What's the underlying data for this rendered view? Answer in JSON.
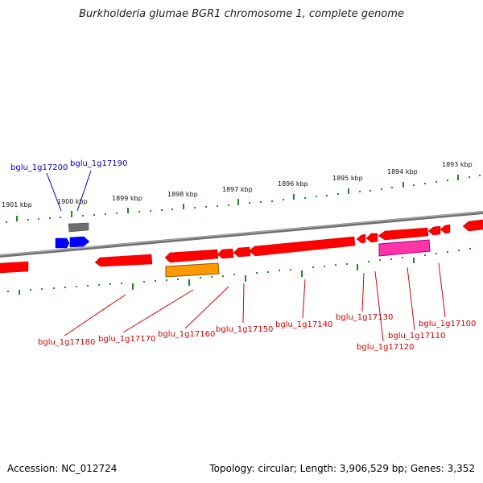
{
  "title": "Burkholderia glumae BGR1 chromosome 1, complete genome",
  "accession": "Accession: NC_012724",
  "summary": "Topology: circular; Length: 3,906,529 bp; Genes: 3,352",
  "kbp_labels": [
    "1901 kbp",
    "1900 kbp",
    "1899 kbp",
    "1898 kbp",
    "1897 kbp",
    "1896 kbp",
    "1895 kbp",
    "1894 kbp",
    "1893 kbp"
  ],
  "forward_genes": [
    "bglu_1g17200",
    "bglu_1g17190"
  ],
  "reverse_genes": [
    "bglu_1g17180",
    "bglu_1g17170",
    "bglu_1g17160",
    "bglu_1g17150",
    "bglu_1g17140",
    "bglu_1g17130",
    "bglu_1g17120",
    "bglu_1g17110",
    "bglu_1g17100"
  ],
  "colors": {
    "cds_red": "#ff0000",
    "forward_blue": "#0000ff",
    "grey_feature": "#777777",
    "orange_feature": "#ff9900",
    "magenta_feature": "#ff33aa",
    "tick_green": "#228822",
    "backbone": "#888888"
  }
}
